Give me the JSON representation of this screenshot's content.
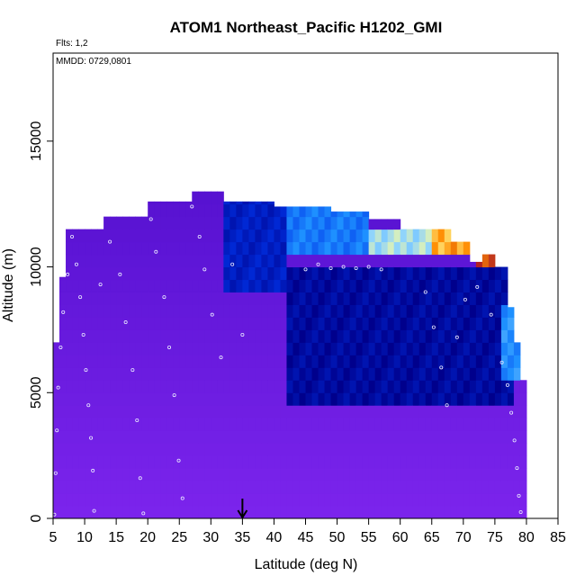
{
  "chart_data": {
    "type": "heatmap",
    "title": "ATOM1 Northeast_Pacific H1202_GMI",
    "flights_note": "Flts: 1,2",
    "dates_note": "MMDD: 0729,0801",
    "xlabel": "Latitude (deg N)",
    "ylabel": "Altitude (m)",
    "xlim": [
      5,
      85
    ],
    "ylim": [
      0,
      18500
    ],
    "xticks": [
      5,
      10,
      15,
      20,
      25,
      30,
      35,
      40,
      45,
      50,
      55,
      60,
      65,
      70,
      75,
      80,
      85
    ],
    "yticks": [
      0,
      5000,
      10000,
      15000
    ],
    "grid": false,
    "marker_arrow_latitude": 35,
    "colors": {
      "background_field": "#7b24ec",
      "low_values": "#00008c",
      "mid_values": "#1e90ff",
      "high_values": "#ffff99",
      "peak_values": "#b22222"
    },
    "columns": [
      {
        "lat": 5.0,
        "top": 7000
      },
      {
        "lat": 6.0,
        "top": 9600
      },
      {
        "lat": 7.0,
        "top": 11500
      },
      {
        "lat": 13.0,
        "top": 12000
      },
      {
        "lat": 20.0,
        "top": 12600
      },
      {
        "lat": 27.0,
        "top": 13000
      },
      {
        "lat": 32.0,
        "top": 12600
      },
      {
        "lat": 40.0,
        "top": 12400
      },
      {
        "lat": 49.0,
        "top": 12200
      },
      {
        "lat": 55.0,
        "top": 11900
      },
      {
        "lat": 60.0,
        "top": 11500
      },
      {
        "lat": 64.0,
        "top": 11500
      },
      {
        "lat": 68.0,
        "top": 11000
      },
      {
        "lat": 71.0,
        "top": 10200
      },
      {
        "lat": 73.0,
        "top": 10500
      },
      {
        "lat": 75.0,
        "top": 10000
      },
      {
        "lat": 77.0,
        "top": 8400
      },
      {
        "lat": 78.0,
        "top": 7000
      },
      {
        "lat": 79.0,
        "top": 5500
      },
      {
        "lat": 80.0,
        "top": 0
      }
    ],
    "ozone_features": [
      {
        "lat_min": 32,
        "lat_max": 42,
        "alt_min": 9000,
        "alt_max": 13000,
        "level": 0.15
      },
      {
        "lat_min": 42,
        "lat_max": 55,
        "alt_min": 10200,
        "alt_max": 12200,
        "level": 0.4
      },
      {
        "lat_min": 55,
        "lat_max": 68,
        "alt_min": 10200,
        "alt_max": 11500,
        "level": 0.65
      },
      {
        "lat_min": 65,
        "lat_max": 72,
        "alt_min": 10500,
        "alt_max": 11300,
        "level": 0.85
      },
      {
        "lat_min": 72,
        "lat_max": 78,
        "alt_min": 7800,
        "alt_max": 10500,
        "level": 0.95
      },
      {
        "lat_min": 42,
        "lat_max": 78,
        "alt_min": 4500,
        "alt_max": 10000,
        "level": 0.05
      },
      {
        "lat_min": 76,
        "lat_max": 79,
        "alt_min": 5500,
        "alt_max": 8500,
        "level": 0.45
      }
    ],
    "flight_points": [
      {
        "lat": 5.2,
        "alt": 150
      },
      {
        "lat": 5.4,
        "alt": 1800
      },
      {
        "lat": 5.6,
        "alt": 3500
      },
      {
        "lat": 5.8,
        "alt": 5200
      },
      {
        "lat": 6.2,
        "alt": 6800
      },
      {
        "lat": 6.6,
        "alt": 8200
      },
      {
        "lat": 7.3,
        "alt": 9700
      },
      {
        "lat": 8.0,
        "alt": 11200
      },
      {
        "lat": 8.7,
        "alt": 10100
      },
      {
        "lat": 9.3,
        "alt": 8800
      },
      {
        "lat": 9.8,
        "alt": 7300
      },
      {
        "lat": 10.2,
        "alt": 5900
      },
      {
        "lat": 10.6,
        "alt": 4500
      },
      {
        "lat": 11.0,
        "alt": 3200
      },
      {
        "lat": 11.3,
        "alt": 1900
      },
      {
        "lat": 11.5,
        "alt": 300
      },
      {
        "lat": 12.5,
        "alt": 9300
      },
      {
        "lat": 14.0,
        "alt": 11000
      },
      {
        "lat": 15.6,
        "alt": 9700
      },
      {
        "lat": 16.5,
        "alt": 7800
      },
      {
        "lat": 17.6,
        "alt": 5900
      },
      {
        "lat": 18.3,
        "alt": 3900
      },
      {
        "lat": 18.8,
        "alt": 1600
      },
      {
        "lat": 19.3,
        "alt": 200
      },
      {
        "lat": 20.5,
        "alt": 11900
      },
      {
        "lat": 21.3,
        "alt": 10600
      },
      {
        "lat": 22.6,
        "alt": 8800
      },
      {
        "lat": 23.4,
        "alt": 6800
      },
      {
        "lat": 24.2,
        "alt": 4900
      },
      {
        "lat": 24.9,
        "alt": 2300
      },
      {
        "lat": 25.5,
        "alt": 800
      },
      {
        "lat": 27.0,
        "alt": 12400
      },
      {
        "lat": 28.2,
        "alt": 11200
      },
      {
        "lat": 29.0,
        "alt": 9900
      },
      {
        "lat": 30.2,
        "alt": 8100
      },
      {
        "lat": 31.6,
        "alt": 6400
      },
      {
        "lat": 33.4,
        "alt": 10100
      },
      {
        "lat": 35.0,
        "alt": 7300
      },
      {
        "lat": 45.0,
        "alt": 9900
      },
      {
        "lat": 47.0,
        "alt": 10100
      },
      {
        "lat": 49.0,
        "alt": 9950
      },
      {
        "lat": 51.0,
        "alt": 10000
      },
      {
        "lat": 53.0,
        "alt": 9950
      },
      {
        "lat": 55.0,
        "alt": 10000
      },
      {
        "lat": 57.0,
        "alt": 9900
      },
      {
        "lat": 64.0,
        "alt": 9000
      },
      {
        "lat": 65.3,
        "alt": 7600
      },
      {
        "lat": 66.5,
        "alt": 6000
      },
      {
        "lat": 67.4,
        "alt": 4500
      },
      {
        "lat": 69.0,
        "alt": 7200
      },
      {
        "lat": 70.3,
        "alt": 8700
      },
      {
        "lat": 72.2,
        "alt": 9200
      },
      {
        "lat": 74.4,
        "alt": 8100
      },
      {
        "lat": 76.1,
        "alt": 6200
      },
      {
        "lat": 77.0,
        "alt": 5300
      },
      {
        "lat": 77.6,
        "alt": 4200
      },
      {
        "lat": 78.1,
        "alt": 3100
      },
      {
        "lat": 78.5,
        "alt": 2000
      },
      {
        "lat": 78.8,
        "alt": 900
      },
      {
        "lat": 79.1,
        "alt": 250
      }
    ]
  }
}
